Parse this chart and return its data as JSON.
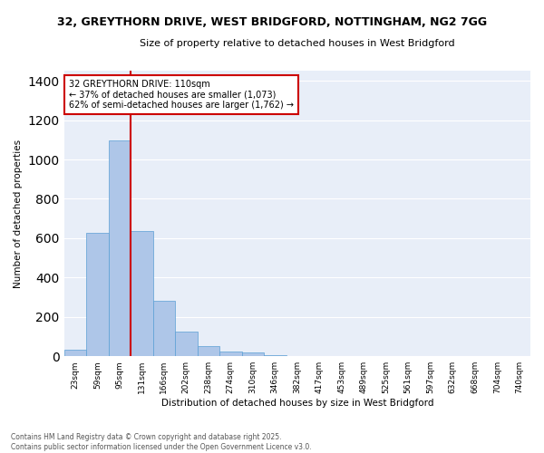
{
  "title1": "32, GREYTHORN DRIVE, WEST BRIDGFORD, NOTTINGHAM, NG2 7GG",
  "title2": "Size of property relative to detached houses in West Bridgford",
  "xlabel": "Distribution of detached houses by size in West Bridgford",
  "ylabel": "Number of detached properties",
  "categories": [
    "23sqm",
    "59sqm",
    "95sqm",
    "131sqm",
    "166sqm",
    "202sqm",
    "238sqm",
    "274sqm",
    "310sqm",
    "346sqm",
    "382sqm",
    "417sqm",
    "453sqm",
    "489sqm",
    "525sqm",
    "561sqm",
    "597sqm",
    "632sqm",
    "668sqm",
    "704sqm",
    "740sqm"
  ],
  "values": [
    35,
    625,
    1095,
    635,
    280,
    125,
    50,
    25,
    20,
    5,
    0,
    0,
    0,
    0,
    0,
    0,
    0,
    0,
    0,
    0,
    0
  ],
  "bar_color": "#aec6e8",
  "bar_edge_color": "#5a9fd4",
  "vline_index": 2,
  "vline_color": "#cc0000",
  "annotation_title": "32 GREYTHORN DRIVE: 110sqm",
  "annotation_line1": "← 37% of detached houses are smaller (1,073)",
  "annotation_line2": "62% of semi-detached houses are larger (1,762) →",
  "annotation_box_color": "#cc0000",
  "ylim": [
    0,
    1450
  ],
  "yticks": [
    0,
    200,
    400,
    600,
    800,
    1000,
    1200,
    1400
  ],
  "background_color": "#e8eef8",
  "grid_color": "#ffffff",
  "footer1": "Contains HM Land Registry data © Crown copyright and database right 2025.",
  "footer2": "Contains public sector information licensed under the Open Government Licence v3.0.",
  "figsize": [
    6.0,
    5.0
  ],
  "dpi": 100
}
